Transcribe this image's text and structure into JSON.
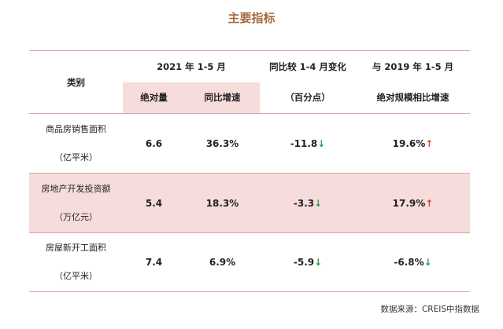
{
  "title": "主要指标",
  "header": {
    "category": "类别",
    "group_2021": "2021 年 1-5 月",
    "absolute": "绝对量",
    "yoy": "同比增速",
    "vs_jan_apr": "同比较 1-4 月变化",
    "pct_points": "（百分点）",
    "vs_2019": "与 2019 年 1-5 月",
    "vs_2019_sub": "绝对规模相比增速"
  },
  "rows": [
    {
      "cat1": "商品房销售面积",
      "cat2": "（亿平米）",
      "absolute": "6.6",
      "yoy": "36.3%",
      "change": "-11.8",
      "change_arrow": "↓",
      "vs2019": "19.6%",
      "vs2019_arrow": "↑"
    },
    {
      "cat1": "房地产开发投资额",
      "cat2": "（万亿元）",
      "absolute": "5.4",
      "yoy": "18.3%",
      "change": "-3.3",
      "change_arrow": "↓",
      "vs2019": "17.9%",
      "vs2019_arrow": "↑"
    },
    {
      "cat1": "房屋新开工面积",
      "cat2": "（亿平米）",
      "absolute": "7.4",
      "yoy": "6.9%",
      "change": "-5.9",
      "change_arrow": "↓",
      "vs2019": "-6.8%",
      "vs2019_arrow": "↓"
    }
  ],
  "source": "数据来源：CREIS中指数据",
  "colors": {
    "title": "#a86a40",
    "pink_fill": "#f7dcdc",
    "rule": "#d9a7a7",
    "up_arrow": "#e0453b",
    "down_arrow": "#2f9e4a"
  }
}
